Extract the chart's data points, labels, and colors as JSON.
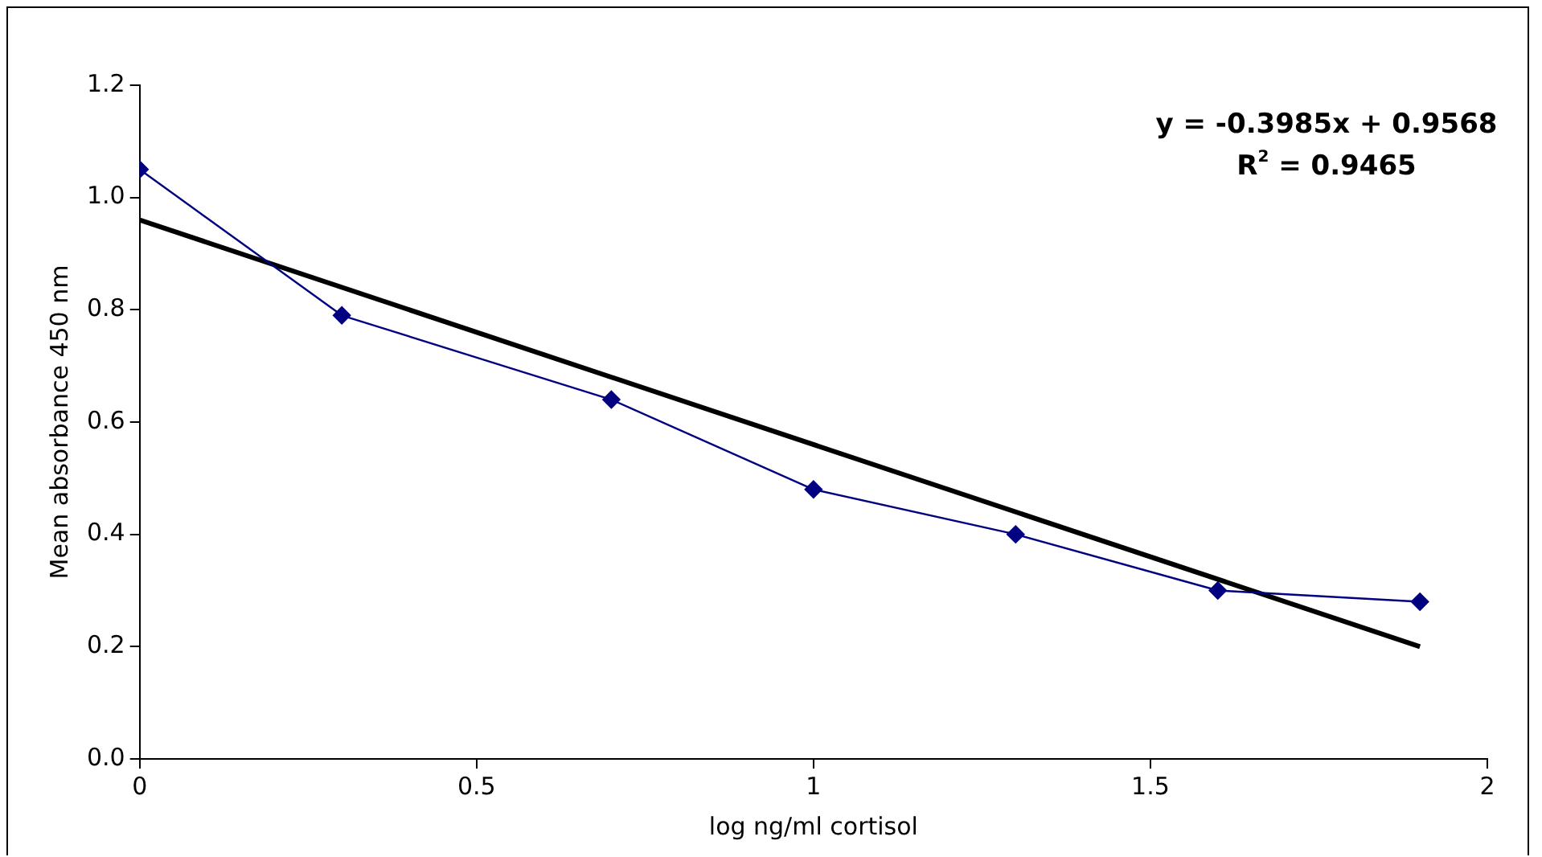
{
  "chart_data": {
    "type": "line",
    "xlabel": "log ng/ml cortisol",
    "ylabel": "Mean absorbance 450 nm",
    "annotations": [
      "y = -0.3985x + 0.9568",
      "R$^{2}$ = 0.9465"
    ],
    "xlim": [
      0,
      2
    ],
    "xticks": [
      0,
      0.5,
      1,
      1.5,
      2
    ],
    "ylim": [
      0,
      1.2
    ],
    "yticks": [
      {
        "value": 0,
        "label": "0.0"
      },
      {
        "value": 0.2,
        "label": "0.2"
      },
      {
        "value": 0.4,
        "label": "0.4"
      },
      {
        "value": 0.6,
        "label": "0.6"
      },
      {
        "value": 0.8,
        "label": "0.8"
      },
      {
        "value": 1.0,
        "label": "1.0"
      },
      {
        "value": 1.2,
        "label": "1.2"
      }
    ],
    "series": [
      {
        "color": "#000080",
        "marker": "diamond",
        "x": [
          0,
          0.3,
          0.7,
          1,
          1.3,
          1.6,
          1.9
        ],
        "values": [
          1.05,
          0.79,
          0.64,
          0.48,
          0.4,
          0.3,
          0.28
        ]
      },
      {
        "color": "#000000",
        "marker": "none",
        "x": [
          0,
          1.9
        ],
        "values": [
          0.96,
          0.2
        ]
      }
    ]
  }
}
